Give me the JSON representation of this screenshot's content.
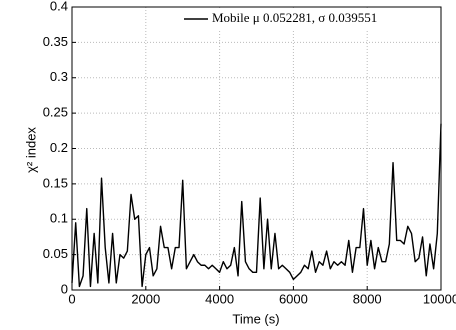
{
  "chart_data": {
    "type": "line",
    "xlabel": "Time (s)",
    "ylabel": "χ² index",
    "x": [
      0,
      100,
      200,
      300,
      400,
      500,
      600,
      700,
      800,
      900,
      1000,
      1100,
      1200,
      1300,
      1400,
      1500,
      1600,
      1700,
      1800,
      1900,
      2000,
      2100,
      2200,
      2300,
      2400,
      2500,
      2600,
      2700,
      2800,
      2900,
      3000,
      3100,
      3200,
      3300,
      3400,
      3500,
      3600,
      3700,
      3800,
      3900,
      4000,
      4100,
      4200,
      4300,
      4400,
      4500,
      4600,
      4700,
      4800,
      4900,
      5000,
      5100,
      5200,
      5300,
      5400,
      5500,
      5600,
      5700,
      5800,
      5900,
      6000,
      6100,
      6200,
      6300,
      6400,
      6500,
      6600,
      6700,
      6800,
      6900,
      7000,
      7100,
      7200,
      7300,
      7400,
      7500,
      7600,
      7700,
      7800,
      7900,
      8000,
      8100,
      8200,
      8300,
      8400,
      8500,
      8600,
      8700,
      8800,
      8900,
      9000,
      9100,
      9200,
      9300,
      9400,
      9500,
      9600,
      9700,
      9800,
      9900,
      10000
    ],
    "series": [
      {
        "name": "Mobile μ 0.052281, σ 0.039551",
        "color": "#000000",
        "values": [
          0.01,
          0.095,
          0.005,
          0.02,
          0.115,
          0.005,
          0.08,
          0.01,
          0.158,
          0.06,
          0.01,
          0.08,
          0.01,
          0.05,
          0.045,
          0.055,
          0.135,
          0.1,
          0.105,
          0.005,
          0.05,
          0.06,
          0.02,
          0.03,
          0.09,
          0.06,
          0.06,
          0.03,
          0.06,
          0.06,
          0.155,
          0.03,
          0.04,
          0.05,
          0.04,
          0.035,
          0.035,
          0.03,
          0.035,
          0.03,
          0.025,
          0.04,
          0.03,
          0.035,
          0.06,
          0.02,
          0.125,
          0.04,
          0.03,
          0.025,
          0.025,
          0.13,
          0.03,
          0.1,
          0.03,
          0.08,
          0.03,
          0.035,
          0.03,
          0.025,
          0.015,
          0.02,
          0.025,
          0.035,
          0.03,
          0.055,
          0.025,
          0.04,
          0.035,
          0.055,
          0.03,
          0.04,
          0.035,
          0.04,
          0.035,
          0.07,
          0.025,
          0.06,
          0.06,
          0.115,
          0.035,
          0.07,
          0.03,
          0.06,
          0.04,
          0.04,
          0.065,
          0.18,
          0.07,
          0.07,
          0.065,
          0.09,
          0.08,
          0.04,
          0.045,
          0.075,
          0.02,
          0.065,
          0.03,
          0.08,
          0.235
        ]
      }
    ],
    "xlim": [
      0,
      10000
    ],
    "xticks": [
      0,
      2000,
      4000,
      6000,
      8000,
      10000
    ],
    "ylim": [
      0,
      0.4
    ],
    "yticks": [
      0,
      0.05,
      0.1,
      0.15,
      0.2,
      0.25,
      0.3,
      0.35,
      0.4
    ],
    "grid": true,
    "legend": "upper right"
  }
}
